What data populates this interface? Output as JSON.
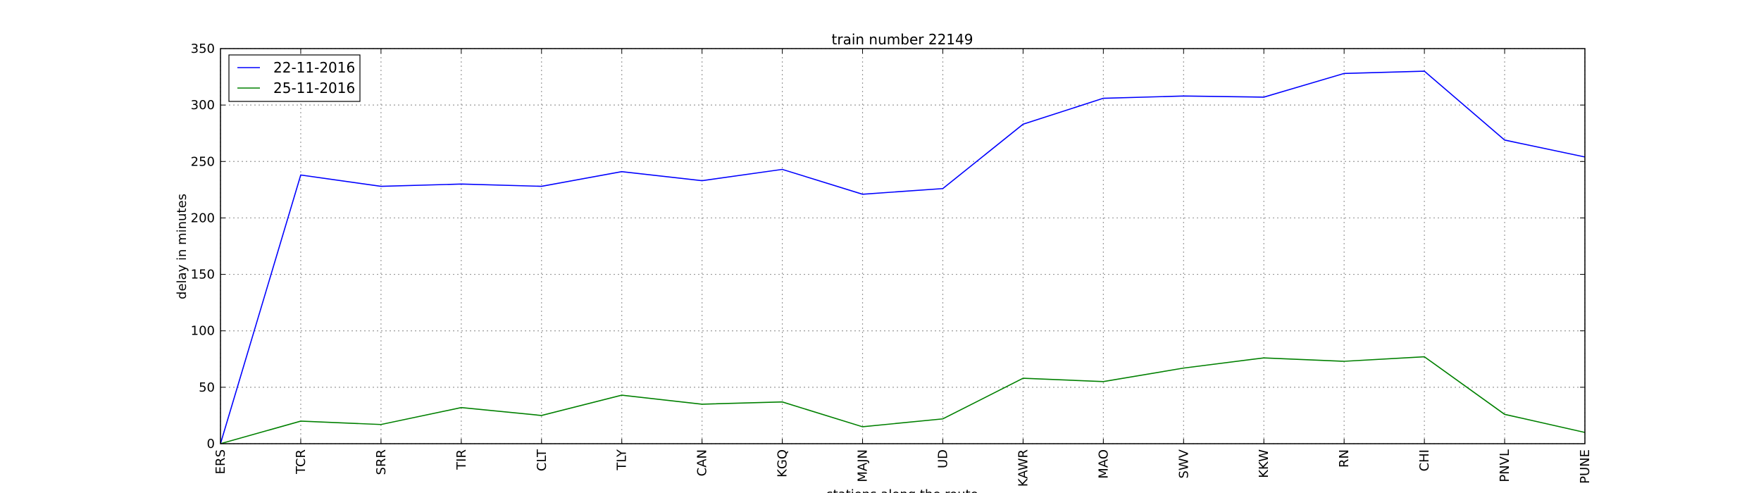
{
  "chart_data": {
    "type": "line",
    "title": "train number 22149",
    "x_label": "stations along the route",
    "y_label": "delay in minutes",
    "categories": [
      "ERS",
      "TCR",
      "SRR",
      "TIR",
      "CLT",
      "TLY",
      "CAN",
      "KGQ",
      "MAJN",
      "UD",
      "KAWR",
      "MAO",
      "SWV",
      "KKW",
      "RN",
      "CHI",
      "PNVL",
      "PUNE"
    ],
    "series": [
      {
        "name": "22-11-2016",
        "color": "#0000ff",
        "values": [
          0,
          238,
          228,
          230,
          228,
          241,
          233,
          243,
          221,
          226,
          283,
          306,
          308,
          307,
          328,
          330,
          269,
          254
        ]
      },
      {
        "name": "25-11-2016",
        "color": "#008000",
        "values": [
          0,
          20,
          17,
          32,
          25,
          43,
          35,
          37,
          15,
          22,
          58,
          55,
          67,
          76,
          73,
          77,
          26,
          10
        ]
      }
    ],
    "ylim": [
      0,
      350
    ],
    "yticks": [
      0,
      50,
      100,
      150,
      200,
      250,
      300,
      350
    ],
    "grid": true,
    "legend": "upper-left"
  }
}
